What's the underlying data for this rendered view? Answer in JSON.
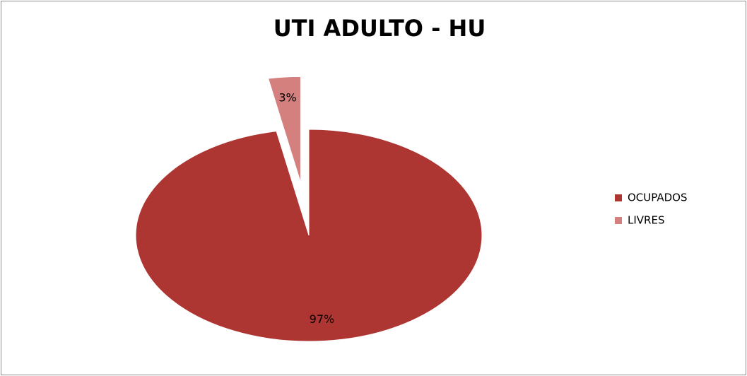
{
  "chart_data": {
    "type": "pie",
    "title": "UTI ADULTO - HU",
    "categories": [
      "OCUPADOS",
      "LIVRES"
    ],
    "values": [
      97,
      3
    ],
    "value_labels": [
      "97%",
      "3%"
    ],
    "colors": [
      "#ad3532",
      "#d4807e"
    ],
    "legend": "right"
  }
}
